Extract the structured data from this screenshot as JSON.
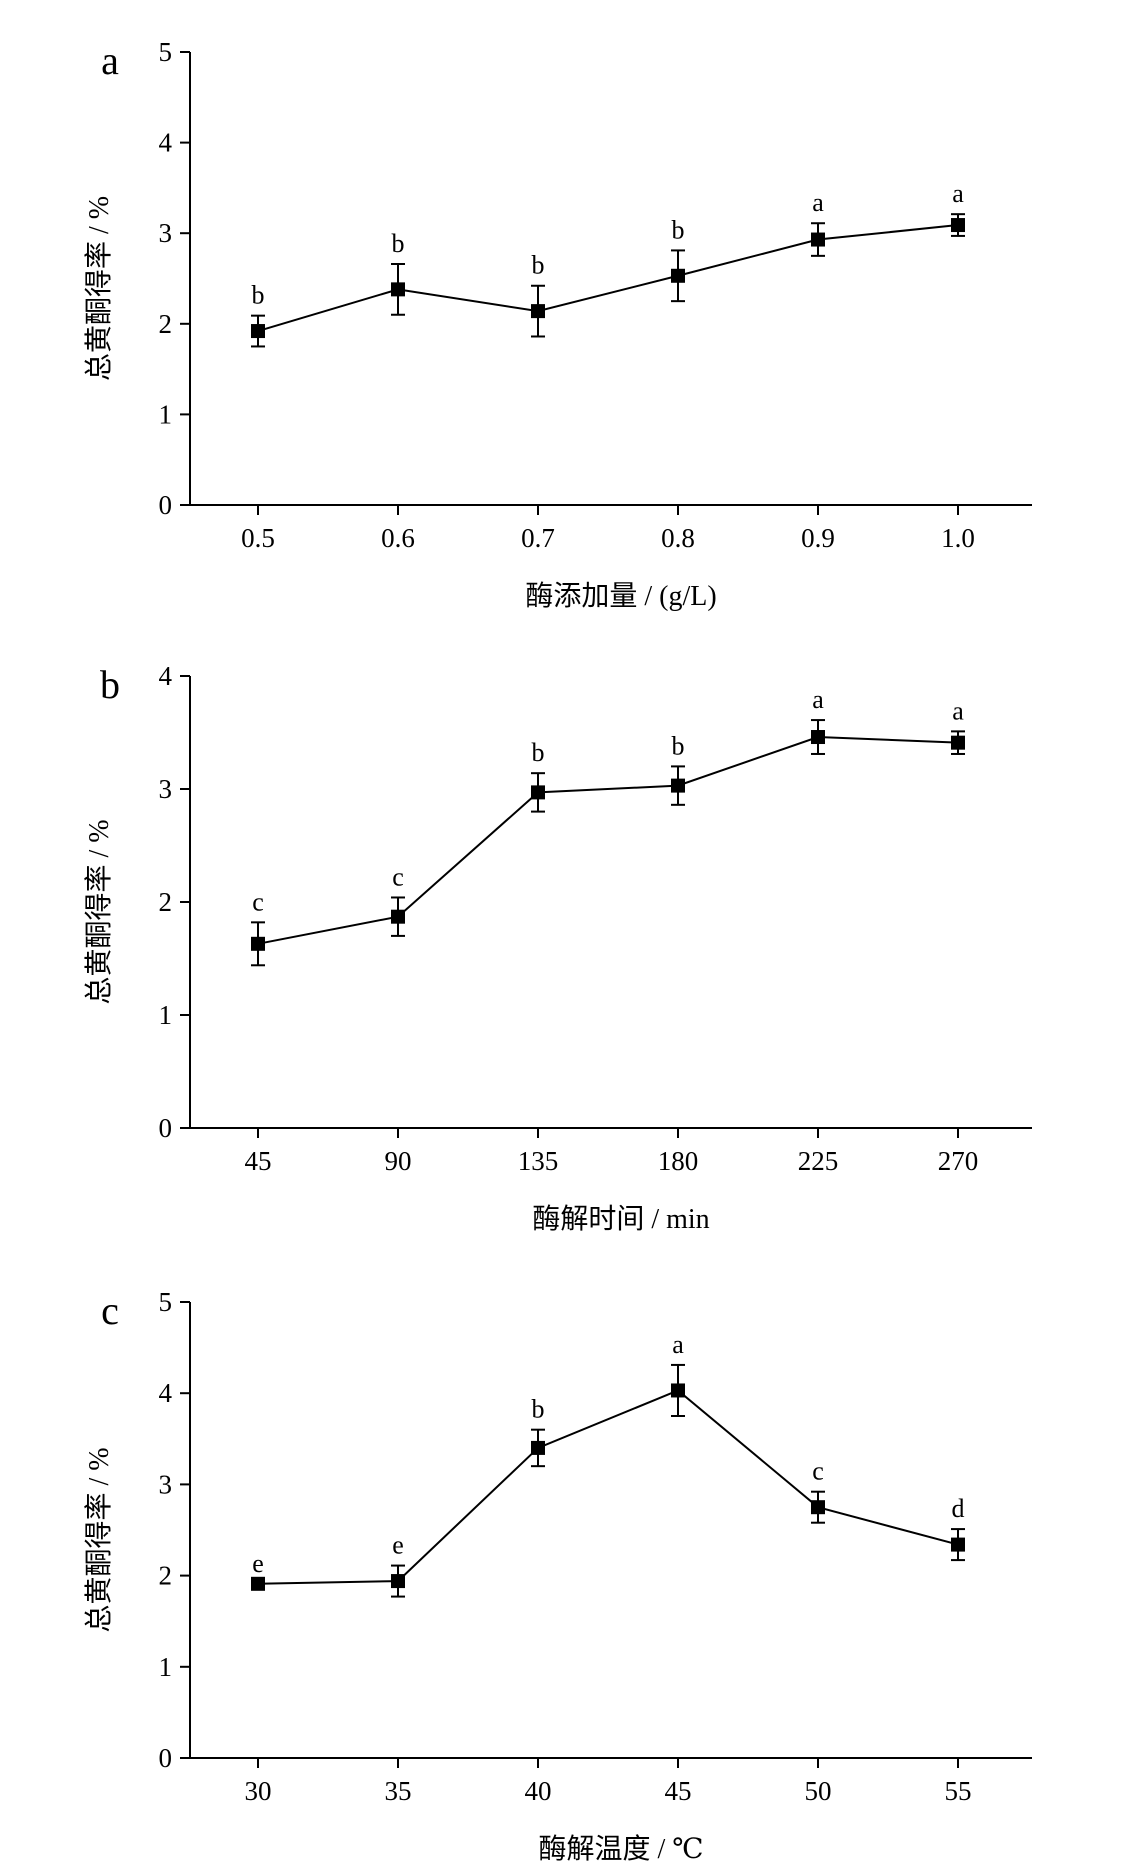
{
  "chart_data": [
    {
      "type": "line",
      "panel_label": "a",
      "xlabel": "酶添加量 / (g/L)",
      "ylabel": "总黄酮得率 / %",
      "categories": [
        "0.5",
        "0.6",
        "0.7",
        "0.8",
        "0.9",
        "1.0"
      ],
      "ylim": [
        0,
        5
      ],
      "yticks": [
        "0",
        "1",
        "2",
        "3",
        "4",
        "5"
      ],
      "grid": false,
      "series": [
        {
          "values": [
            1.92,
            2.38,
            2.14,
            2.53,
            2.93,
            3.09
          ],
          "errors": [
            0.17,
            0.28,
            0.28,
            0.28,
            0.18,
            0.12
          ],
          "labels": [
            "b",
            "b",
            "b",
            "b",
            "a",
            "a"
          ]
        }
      ]
    },
    {
      "type": "line",
      "panel_label": "b",
      "xlabel": "酶解时间 / min",
      "ylabel": "总黄酮得率 / %",
      "categories": [
        "45",
        "90",
        "135",
        "180",
        "225",
        "270"
      ],
      "ylim": [
        0,
        4
      ],
      "yticks": [
        "0",
        "1",
        "2",
        "3",
        "4"
      ],
      "grid": false,
      "series": [
        {
          "values": [
            1.63,
            1.87,
            2.97,
            3.03,
            3.46,
            3.41
          ],
          "errors": [
            0.19,
            0.17,
            0.17,
            0.17,
            0.15,
            0.1
          ],
          "labels": [
            "c",
            "c",
            "b",
            "b",
            "a",
            "a"
          ]
        }
      ]
    },
    {
      "type": "line",
      "panel_label": "c",
      "xlabel": "酶解温度 / ℃",
      "ylabel": "总黄酮得率 / %",
      "categories": [
        "30",
        "35",
        "40",
        "45",
        "50",
        "55"
      ],
      "ylim": [
        0,
        5
      ],
      "yticks": [
        "0",
        "1",
        "2",
        "3",
        "4",
        "5"
      ],
      "grid": false,
      "series": [
        {
          "values": [
            1.91,
            1.94,
            3.4,
            4.03,
            2.75,
            2.34
          ],
          "errors": [
            0.0,
            0.17,
            0.2,
            0.28,
            0.17,
            0.17
          ],
          "labels": [
            "e",
            "e",
            "b",
            "a",
            "c",
            "d"
          ]
        }
      ]
    }
  ]
}
